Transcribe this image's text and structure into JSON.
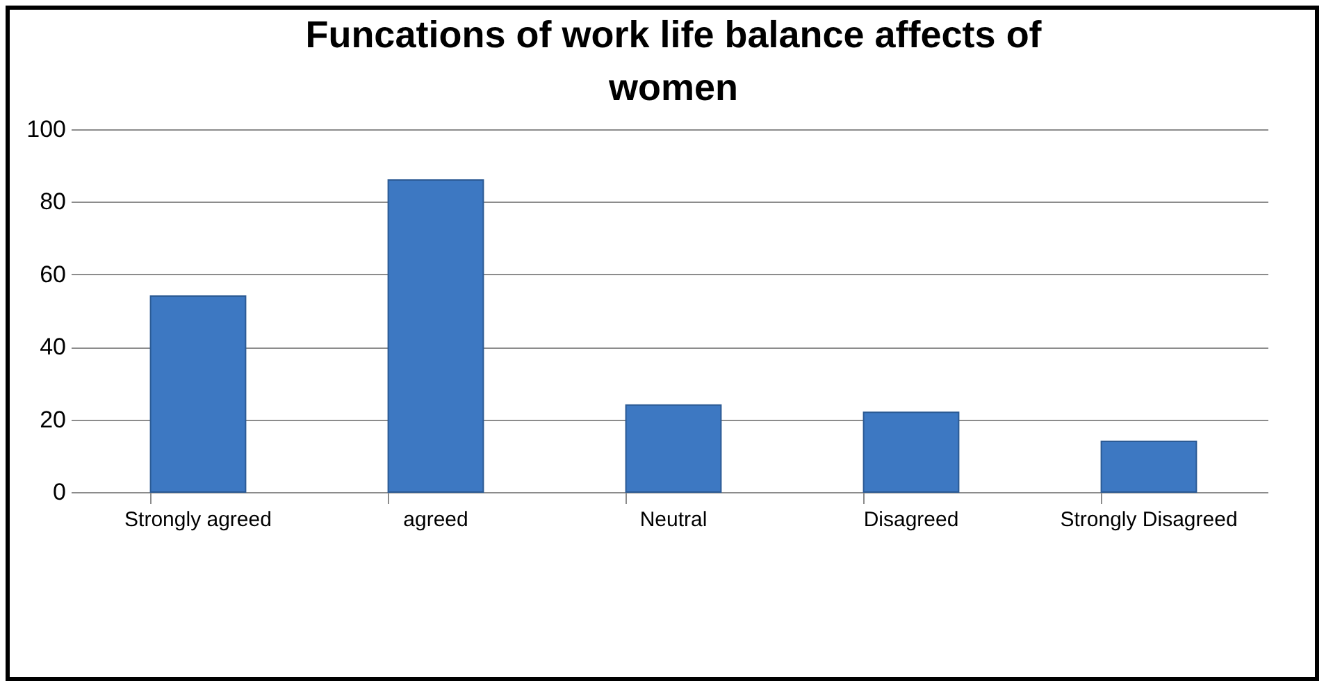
{
  "chart_data": {
    "type": "bar",
    "title": "Funcations of work life balance affects of women",
    "categories": [
      "Strongly agreed",
      "agreed",
      "Neutral",
      "Disagreed",
      "Strongly Disagreed"
    ],
    "values": [
      54,
      86,
      24,
      22,
      14
    ],
    "color": "#3d78c2",
    "ylim": [
      0,
      100
    ],
    "yticks": [
      0,
      20,
      40,
      60,
      80,
      100
    ],
    "grid": "y"
  }
}
